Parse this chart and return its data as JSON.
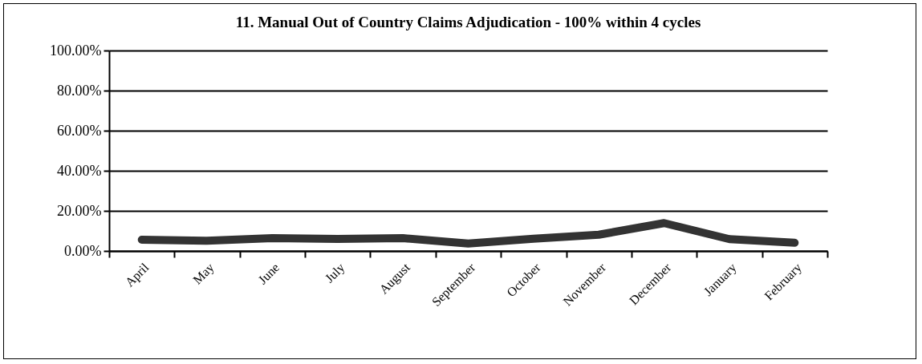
{
  "chart_data": {
    "type": "line",
    "title": "11. Manual Out of Country Claims Adjudication - 100% within 4 cycles",
    "categories": [
      "April",
      "May",
      "June",
      "July",
      "August",
      "September",
      "October",
      "November",
      "December",
      "January",
      "February"
    ],
    "series": [
      {
        "color": "#333333",
        "values": [
          5.6,
          5.1,
          6.4,
          6.0,
          6.4,
          3.7,
          6.1,
          8.1,
          13.9,
          5.9,
          4.1
        ]
      }
    ],
    "ylim": [
      0,
      100
    ],
    "yticks": [
      {
        "value": 0,
        "label": "0.00%"
      },
      {
        "value": 20,
        "label": "20.00%"
      },
      {
        "value": 40,
        "label": "40.00%"
      },
      {
        "value": 60,
        "label": "60.00%"
      },
      {
        "value": 80,
        "label": "80.00%"
      },
      {
        "value": 100,
        "label": "100.00%"
      }
    ],
    "grid": "y",
    "marker": "none",
    "line_style": "solid"
  }
}
